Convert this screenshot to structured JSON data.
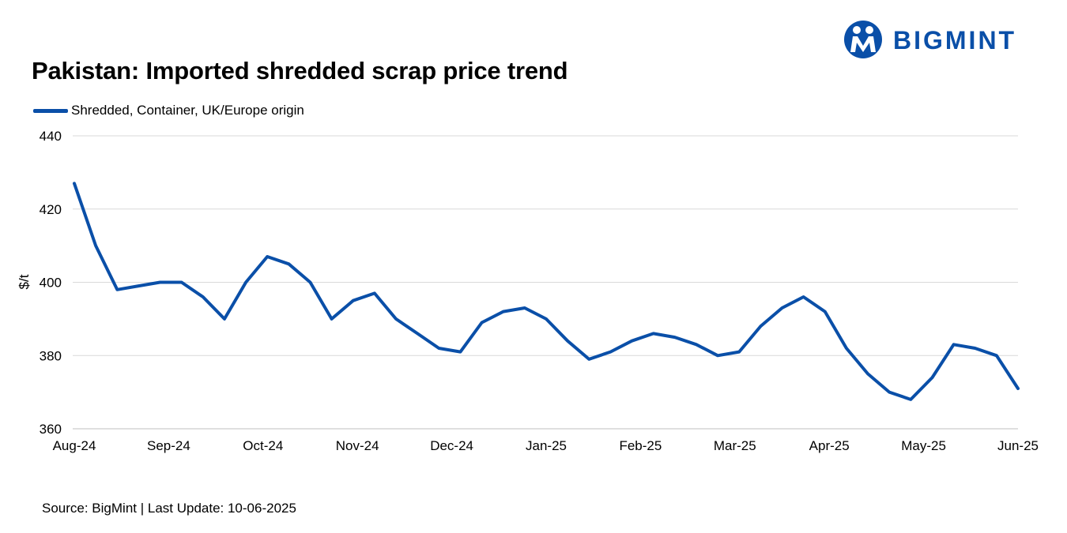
{
  "title": "Pakistan: Imported shredded scrap price trend",
  "logo": {
    "text": "BIGMINT",
    "icon": "bigmint-people-icon",
    "color": "#0a4fa8"
  },
  "source": "Source: BigMint | Last Update: 10-06-2025",
  "chart_data": {
    "type": "line",
    "ylabel": "$/t",
    "xlabel": "",
    "ylim": [
      360,
      440
    ],
    "yticks": [
      360,
      380,
      400,
      420,
      440
    ],
    "x_tick_labels": [
      "Aug-24",
      "Sep-24",
      "Oct-24",
      "Nov-24",
      "Dec-24",
      "Jan-25",
      "Feb-25",
      "Mar-25",
      "Apr-25",
      "May-25",
      "Jun-25"
    ],
    "grid": true,
    "legend_position": "top-left",
    "series": [
      {
        "name": "Shredded, Container, UK/Europe origin",
        "color": "#0a4fa8",
        "values": [
          427,
          410,
          398,
          399,
          400,
          400,
          396,
          390,
          400,
          407,
          405,
          400,
          390,
          395,
          397,
          390,
          386,
          382,
          381,
          389,
          392,
          393,
          390,
          384,
          379,
          381,
          384,
          386,
          385,
          383,
          380,
          381,
          388,
          393,
          396,
          392,
          382,
          375,
          370,
          368,
          374,
          383,
          382,
          380,
          371
        ]
      }
    ]
  }
}
